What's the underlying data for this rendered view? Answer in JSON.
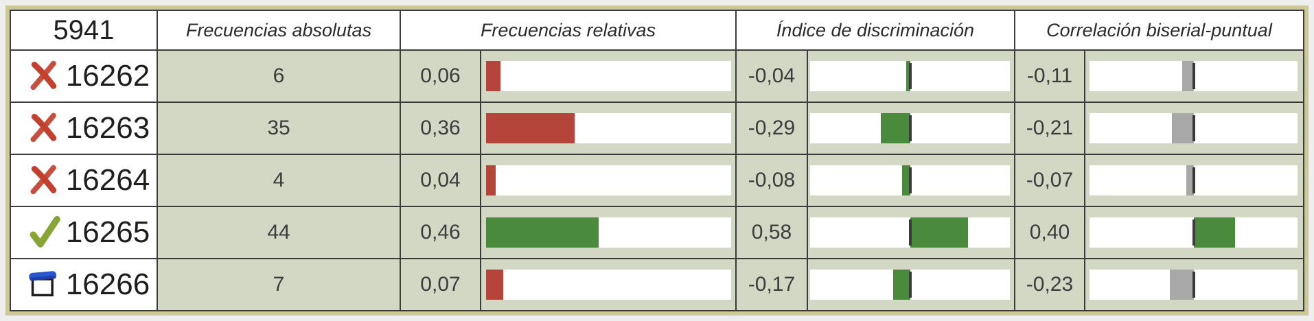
{
  "header": {
    "test_code": "5941",
    "columns": [
      "Frecuencias absolutas",
      "Frecuencias relativas",
      "Índice de discriminación",
      "Correlación biserial-puntual"
    ]
  },
  "colors": {
    "red": "#b5443a",
    "green": "#4a8a3c",
    "gray": "#a8a8a8",
    "zero_line": "#3a3a3a",
    "cell_sage": "#d3d8c5",
    "frame_khaki": "#ccc897",
    "grid_line": "#3b3b3b",
    "cross_icon_red": "#c2402e",
    "check_icon_green": "#85a636",
    "blank_icon_blue": "#2b55cb"
  },
  "table": {
    "rows": [
      {
        "id": "16262",
        "icon": "cross",
        "abs": "6",
        "rel_label": "0,06",
        "rel_value": 0.06,
        "rel_color": "red",
        "disc_label": "-0,04",
        "disc_value": -0.04,
        "disc_color": "green",
        "corr_label": "-0,11",
        "corr_value": -0.11,
        "corr_color": "gray"
      },
      {
        "id": "16263",
        "icon": "cross",
        "abs": "35",
        "rel_label": "0,36",
        "rel_value": 0.36,
        "rel_color": "red",
        "disc_label": "-0,29",
        "disc_value": -0.29,
        "disc_color": "green",
        "corr_label": "-0,21",
        "corr_value": -0.21,
        "corr_color": "gray"
      },
      {
        "id": "16264",
        "icon": "cross",
        "abs": "4",
        "rel_label": "0,04",
        "rel_value": 0.04,
        "rel_color": "red",
        "disc_label": "-0,08",
        "disc_value": -0.08,
        "disc_color": "green",
        "corr_label": "-0,07",
        "corr_value": -0.07,
        "corr_color": "gray"
      },
      {
        "id": "16265",
        "icon": "check",
        "abs": "44",
        "rel_label": "0,46",
        "rel_value": 0.46,
        "rel_color": "green",
        "disc_label": "0,58",
        "disc_value": 0.58,
        "disc_color": "green",
        "corr_label": "0,40",
        "corr_value": 0.4,
        "corr_color": "green"
      },
      {
        "id": "16266",
        "icon": "blank",
        "abs": "7",
        "rel_label": "0,07",
        "rel_value": 0.07,
        "rel_color": "red",
        "disc_label": "-0,17",
        "disc_value": -0.17,
        "disc_color": "green",
        "corr_label": "-0,23",
        "corr_value": -0.23,
        "corr_color": "gray"
      }
    ]
  }
}
